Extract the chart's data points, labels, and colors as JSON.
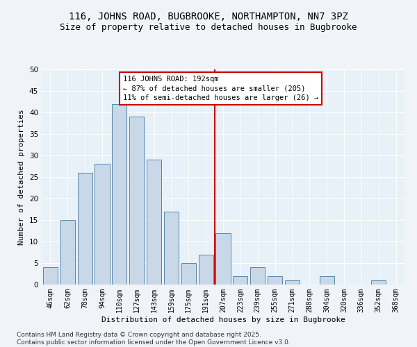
{
  "title1": "116, JOHNS ROAD, BUGBROOKE, NORTHAMPTON, NN7 3PZ",
  "title2": "Size of property relative to detached houses in Bugbrooke",
  "xlabel": "Distribution of detached houses by size in Bugbrooke",
  "ylabel": "Number of detached properties",
  "categories": [
    "46sqm",
    "62sqm",
    "78sqm",
    "94sqm",
    "110sqm",
    "127sqm",
    "143sqm",
    "159sqm",
    "175sqm",
    "191sqm",
    "207sqm",
    "223sqm",
    "239sqm",
    "255sqm",
    "271sqm",
    "288sqm",
    "304sqm",
    "320sqm",
    "336sqm",
    "352sqm",
    "368sqm"
  ],
  "values": [
    4,
    15,
    26,
    28,
    42,
    39,
    29,
    17,
    5,
    7,
    12,
    2,
    4,
    2,
    1,
    0,
    2,
    0,
    0,
    1,
    0
  ],
  "bar_color": "#c8d8e8",
  "bar_edge_color": "#5588aa",
  "annotation_text": "116 JOHNS ROAD: 192sqm\n← 87% of detached houses are smaller (205)\n11% of semi-detached houses are larger (26) →",
  "annotation_box_color": "#ffffff",
  "annotation_box_edge_color": "#cc0000",
  "ylim": [
    0,
    50
  ],
  "yticks": [
    0,
    5,
    10,
    15,
    20,
    25,
    30,
    35,
    40,
    45,
    50
  ],
  "bg_color": "#e8f0f8",
  "fig_bg_color": "#f0f4f8",
  "footer": "Contains HM Land Registry data © Crown copyright and database right 2025.\nContains public sector information licensed under the Open Government Licence v3.0.",
  "title1_fontsize": 10,
  "title2_fontsize": 9,
  "xlabel_fontsize": 8,
  "ylabel_fontsize": 8,
  "tick_fontsize": 7,
  "annotation_fontsize": 7.5,
  "footer_fontsize": 6.5
}
